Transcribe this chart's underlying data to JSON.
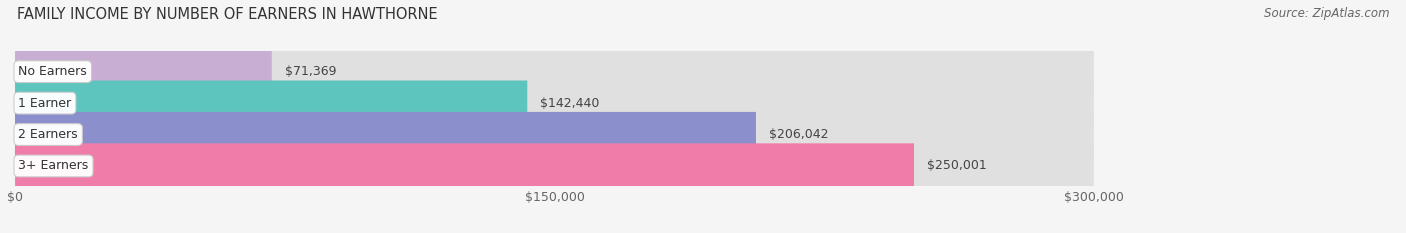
{
  "title": "FAMILY INCOME BY NUMBER OF EARNERS IN HAWTHORNE",
  "source": "Source: ZipAtlas.com",
  "categories": [
    "No Earners",
    "1 Earner",
    "2 Earners",
    "3+ Earners"
  ],
  "values": [
    71369,
    142440,
    206042,
    250001
  ],
  "labels": [
    "$71,369",
    "$142,440",
    "$206,042",
    "$250,001"
  ],
  "bar_colors": [
    "#c9aed4",
    "#5ec4be",
    "#8b8fcc",
    "#f07caa"
  ],
  "bar_bg_color": "#e0e0e0",
  "xlim": [
    0,
    300000
  ],
  "xticks": [
    0,
    150000,
    300000
  ],
  "xticklabels": [
    "$0",
    "$150,000",
    "$300,000"
  ],
  "background_color": "#f5f5f5",
  "bar_height": 0.72,
  "title_fontsize": 10.5,
  "source_fontsize": 8.5,
  "tick_fontsize": 9,
  "label_fontsize": 9,
  "category_fontsize": 9
}
